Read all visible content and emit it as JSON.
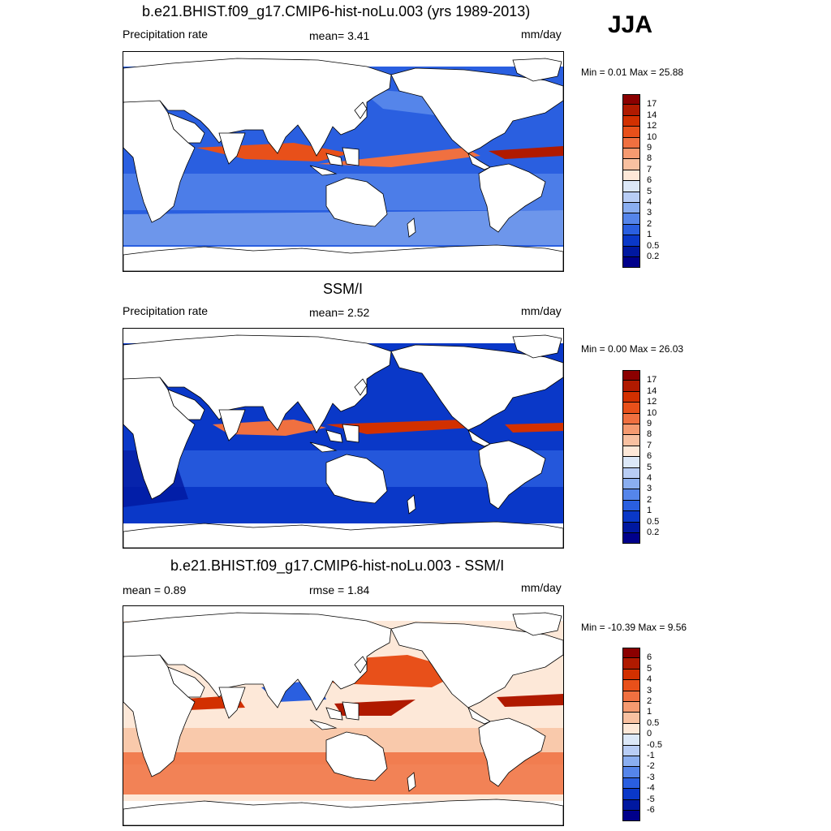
{
  "season": "JJA",
  "panels": [
    {
      "id": "model",
      "title": "b.e21.BHIST.f09_g17.CMIP6-hist-noLu.003 (yrs 1989-2013)",
      "left_label": "Precipitation rate",
      "center_label": "mean=   3.41",
      "right_label": "mm/day",
      "minmax": "Min =   0.01 Max =  25.88",
      "colorbar_labels": [
        "17",
        "14",
        "12",
        "10",
        "9",
        "8",
        "7",
        "6",
        "5",
        "4",
        "3",
        "2",
        "1",
        "0.5",
        "0.2"
      ],
      "colors": [
        "#8b0000",
        "#b01a00",
        "#d23000",
        "#e8501a",
        "#f07040",
        "#f59a70",
        "#f8c0a0",
        "#fde8d8",
        "#dce8f8",
        "#b8cdf5",
        "#8aaef0",
        "#5585ea",
        "#2a5fe0",
        "#0a38c8",
        "#0018a0",
        "#00008b"
      ]
    },
    {
      "id": "obs",
      "title": "SSM/I",
      "left_label": "Precipitation rate",
      "center_label": "mean=   2.52",
      "right_label": "mm/day",
      "minmax": "Min =   0.00 Max =  26.03",
      "colorbar_labels": [
        "17",
        "14",
        "12",
        "10",
        "9",
        "8",
        "7",
        "6",
        "5",
        "4",
        "3",
        "2",
        "1",
        "0.5",
        "0.2"
      ],
      "colors": [
        "#8b0000",
        "#b01a00",
        "#d23000",
        "#e8501a",
        "#f07040",
        "#f59a70",
        "#f8c0a0",
        "#fde8d8",
        "#dce8f8",
        "#b8cdf5",
        "#8aaef0",
        "#5585ea",
        "#2a5fe0",
        "#0a38c8",
        "#0018a0",
        "#00008b"
      ]
    },
    {
      "id": "diff",
      "title": "b.e21.BHIST.f09_g17.CMIP6-hist-noLu.003 - SSM/I",
      "left_label": "mean =   0.89",
      "center_label": "rmse =   1.84",
      "right_label": "mm/day",
      "minmax": "Min = -10.39 Max =   9.56",
      "colorbar_labels": [
        "6",
        "5",
        "4",
        "3",
        "2",
        "1",
        "0.5",
        "0",
        "-0.5",
        "-1",
        "-2",
        "-3",
        "-4",
        "-5",
        "-6"
      ],
      "colors": [
        "#8b0000",
        "#b01a00",
        "#d23000",
        "#e8501a",
        "#f07040",
        "#f59a70",
        "#f8c0a0",
        "#fde8d8",
        "#dce8f8",
        "#b8cdf5",
        "#8aaef0",
        "#5585ea",
        "#2a5fe0",
        "#0a38c8",
        "#0018a0",
        "#00008b"
      ]
    }
  ]
}
